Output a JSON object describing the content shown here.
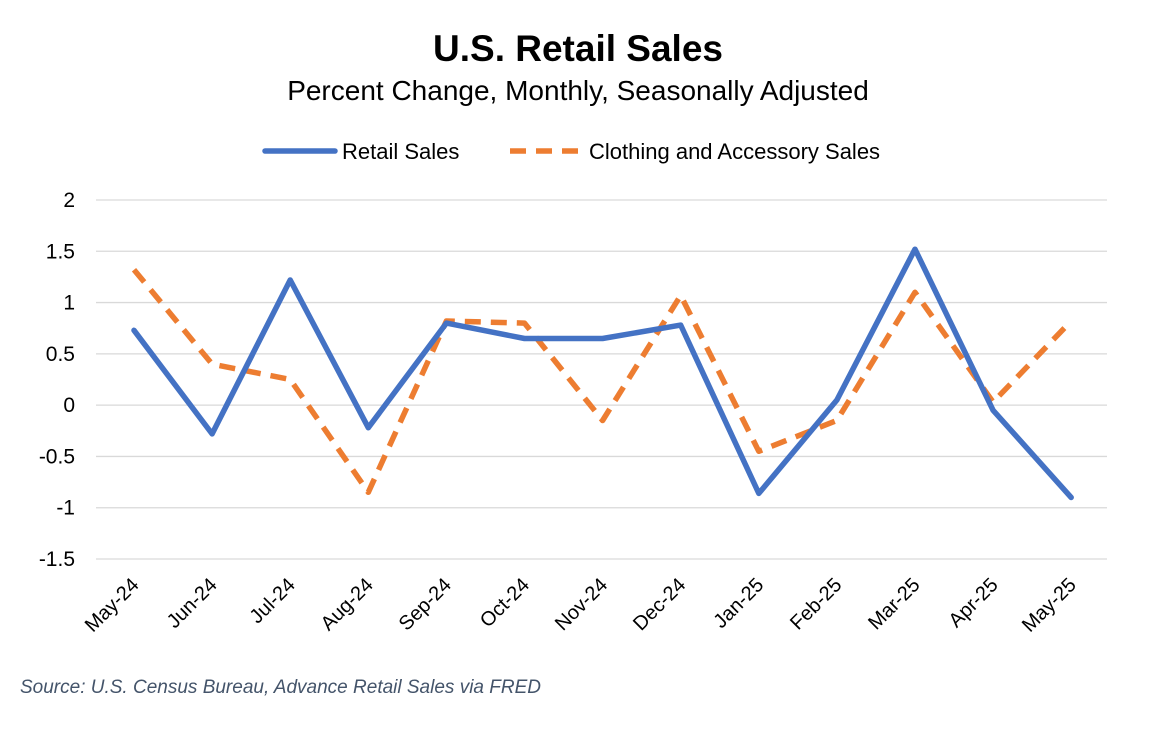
{
  "title": "U.S. Retail Sales",
  "subtitle": "Percent Change, Monthly, Seasonally Adjusted",
  "source": "Source: U.S. Census Bureau, Advance Retail Sales via FRED",
  "chart_data": {
    "type": "line",
    "title": "U.S. Retail Sales",
    "subtitle": "Percent Change, Monthly, Seasonally Adjusted",
    "categories": [
      "May-24",
      "Jun-24",
      "Jul-24",
      "Aug-24",
      "Sep-24",
      "Oct-24",
      "Nov-24",
      "Dec-24",
      "Jan-25",
      "Feb-25",
      "Mar-25",
      "Apr-25",
      "May-25"
    ],
    "series": [
      {
        "name": "Retail Sales",
        "color": "#4472c4",
        "dash": "solid",
        "values": [
          0.73,
          -0.28,
          1.22,
          -0.22,
          0.8,
          0.65,
          0.65,
          0.78,
          -0.86,
          0.05,
          1.52,
          -0.05,
          -0.9
        ]
      },
      {
        "name": "Clothing and Accessory Sales",
        "color": "#ed7d31",
        "dash": "dashed",
        "values": [
          1.32,
          0.4,
          0.25,
          -0.85,
          0.82,
          0.8,
          -0.15,
          1.07,
          -0.45,
          -0.15,
          1.1,
          0.03,
          0.82
        ]
      }
    ],
    "ylim": [
      -1.5,
      2
    ],
    "yticks": [
      "2",
      "1.5",
      "1",
      "0.5",
      "0",
      "-0.5",
      "-1",
      "-1.5"
    ],
    "grid": true,
    "legend_position": "top"
  }
}
